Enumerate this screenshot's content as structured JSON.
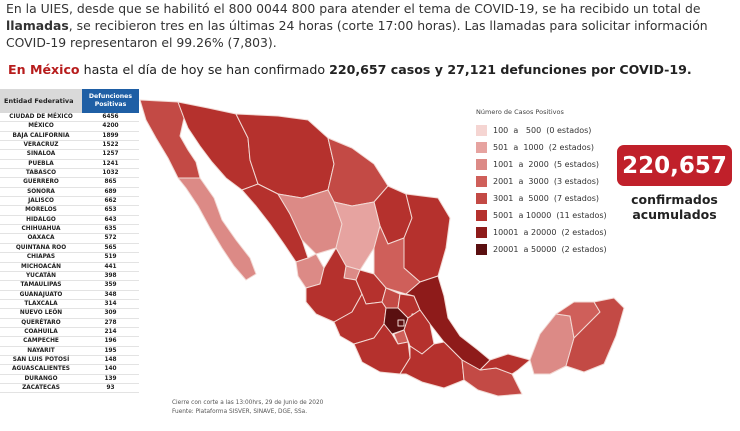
{
  "intro": {
    "line1": "En la UIES, desde que se habilitó el 800 0044 800 para atender el tema de COVID-19, se ha recibido un total de",
    "line2_bold": "llamadas",
    "line2_rest": ", se recibieron tres en las últimas 24 horas (corte 17:00 horas). Las llamadas para solicitar información",
    "line3": "COVID-19 representaron el 99.26% (7,803)."
  },
  "headline": {
    "prefix": "En México",
    "middle": " hasta el día de hoy se han confirmado ",
    "highlight": "220,657 casos y 27,121 defunciones por COVID-19."
  },
  "table": {
    "header_entity": "Entidad Federativa",
    "header_deaths": "Defunciones Positivas",
    "rows": [
      {
        "name": "CIUDAD DE MÉXICO",
        "value": "6456"
      },
      {
        "name": "MÉXICO",
        "value": "4200"
      },
      {
        "name": "BAJA CALIFORNIA",
        "value": "1899"
      },
      {
        "name": "VERACRUZ",
        "value": "1522"
      },
      {
        "name": "SINALOA",
        "value": "1257"
      },
      {
        "name": "PUEBLA",
        "value": "1241"
      },
      {
        "name": "TABASCO",
        "value": "1032"
      },
      {
        "name": "GUERRERO",
        "value": "865"
      },
      {
        "name": "SONORA",
        "value": "689"
      },
      {
        "name": "JALISCO",
        "value": "662"
      },
      {
        "name": "MORELOS",
        "value": "653"
      },
      {
        "name": "HIDALGO",
        "value": "643"
      },
      {
        "name": "CHIHUAHUA",
        "value": "635"
      },
      {
        "name": "OAXACA",
        "value": "572"
      },
      {
        "name": "QUINTANA ROO",
        "value": "565"
      },
      {
        "name": "CHIAPAS",
        "value": "519"
      },
      {
        "name": "MICHOACÁN",
        "value": "441"
      },
      {
        "name": "YUCATÁN",
        "value": "398"
      },
      {
        "name": "TAMAULIPAS",
        "value": "359"
      },
      {
        "name": "GUANAJUATO",
        "value": "348"
      },
      {
        "name": "TLAXCALA",
        "value": "314"
      },
      {
        "name": "NUEVO LEÓN",
        "value": "309"
      },
      {
        "name": "QUERÉTARO",
        "value": "278"
      },
      {
        "name": "COAHUILA",
        "value": "214"
      },
      {
        "name": "CAMPECHE",
        "value": "196"
      },
      {
        "name": "NAYARIT",
        "value": "195"
      },
      {
        "name": "SAN LUIS POTOSÍ",
        "value": "148"
      },
      {
        "name": "AGUASCALIENTES",
        "value": "140"
      },
      {
        "name": "DURANGO",
        "value": "139"
      },
      {
        "name": "ZACATECAS",
        "value": "93"
      }
    ]
  },
  "legend": {
    "title": "Número de Casos Positivos",
    "items": [
      {
        "text": "100  a   500  (0 estados)",
        "color": "#f5d5d2"
      },
      {
        "text": "501  a  1000  (2 estados)",
        "color": "#e6a3a0"
      },
      {
        "text": "1001  a  2000  (5 estados)",
        "color": "#dc8a86"
      },
      {
        "text": "2001  a  3000  (3 estados)",
        "color": "#cf5f5a"
      },
      {
        "text": "3001  a  5000  (7 estados)",
        "color": "#c34a45"
      },
      {
        "text": "5001  a 10000  (11 estados)",
        "color": "#b5312d"
      },
      {
        "text": "10001  a 20000  (2 estados)",
        "color": "#8e1b1a"
      },
      {
        "text": "20001  a 50000  (2 estados)",
        "color": "#5a0f10"
      }
    ]
  },
  "counter": {
    "value": "220,657",
    "label_line1": "confirmados",
    "label_line2": "acumulados"
  },
  "source": {
    "line1": "Cierre con corte a las 13:00hrs, 29 de Junio de 2020",
    "line2": "Fuente: Plataforma SISVER, SINAVE, DGE, SSa."
  }
}
